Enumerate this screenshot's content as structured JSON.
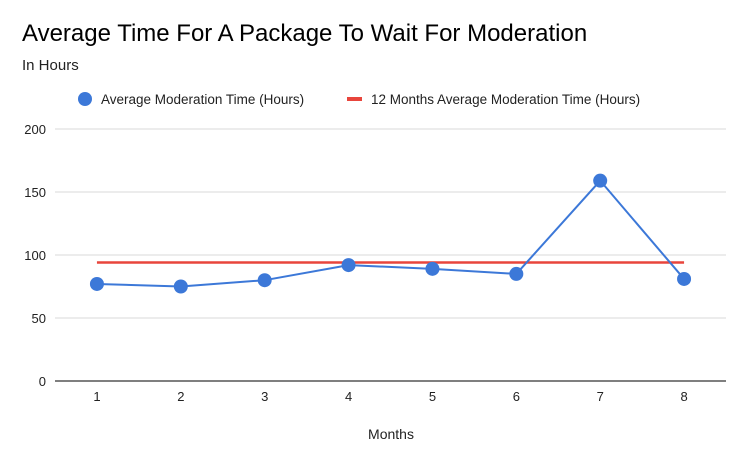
{
  "chart_data": {
    "type": "line",
    "title": "Average Time For A Package To Wait For Moderation",
    "subtitle": "In Hours",
    "xlabel": "Months",
    "ylabel": "",
    "categories": [
      "1",
      "2",
      "3",
      "4",
      "5",
      "6",
      "7",
      "8"
    ],
    "ylim": [
      0,
      200
    ],
    "yticks": [
      "0",
      "50",
      "100",
      "150",
      "200"
    ],
    "grid": true,
    "legend_position": "top",
    "series": [
      {
        "name": "Average Moderation Time (Hours)",
        "style": "line-with-markers",
        "color": "#3c78d8",
        "values": [
          77,
          75,
          80,
          92,
          89,
          85,
          159,
          81
        ]
      },
      {
        "name": "12 Months Average Moderation Time (Hours)",
        "style": "line",
        "color": "#e8453c",
        "values": [
          94,
          94,
          94,
          94,
          94,
          94,
          94,
          94
        ]
      }
    ]
  }
}
